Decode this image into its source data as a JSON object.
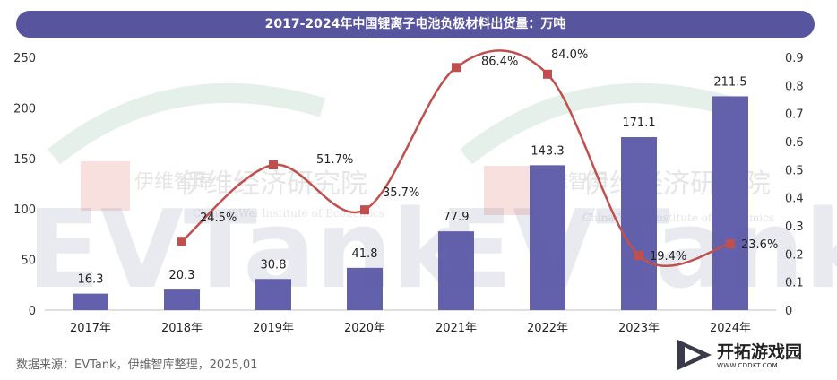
{
  "chart_data": {
    "type": "bar",
    "title": "2017-2024年中国锂离子电池负极材料出货量：万吨",
    "categories": [
      "2017年",
      "2018年",
      "2019年",
      "2020年",
      "2021年",
      "2022年",
      "2023年",
      "2024年"
    ],
    "series": [
      {
        "name": "",
        "type": "bar",
        "axis": "left",
        "values": [
          16.3,
          20.3,
          30.8,
          41.8,
          77.9,
          143.3,
          171.1,
          211.5
        ],
        "labels": [
          "16.3",
          "20.3",
          "30.8",
          "41.8",
          "77.9",
          "143.3",
          "171.1",
          "211.5"
        ]
      },
      {
        "name": "",
        "type": "line",
        "axis": "right",
        "values": [
          null,
          0.245,
          0.517,
          0.357,
          0.864,
          0.84,
          0.194,
          0.236
        ],
        "labels": [
          "",
          "24.5%",
          "51.7%",
          "35.7%",
          "86.4%",
          "84.0%",
          "19.4%",
          "23.6%"
        ]
      }
    ],
    "y_left": {
      "min": 0,
      "max": 250,
      "ticks": [
        "0",
        "50",
        "100",
        "150",
        "200",
        "250"
      ]
    },
    "y_right": {
      "min": 0,
      "max": 0.9,
      "ticks": [
        "0",
        "0.1",
        "0.2",
        "0.3",
        "0.4",
        "0.5",
        "0.6",
        "0.7",
        "0.8",
        "0.9"
      ]
    },
    "grid": false,
    "colors": {
      "bar": "#5b58a6",
      "line": "#c0504d",
      "title_bg": "#58559f"
    }
  },
  "source": "数据来源：EVTank，伊维智库整理，2025,01",
  "watermark": {
    "brand": "EVTank",
    "name_cn": "伊维经济研究院",
    "name_en": "China YiWei Institute of Economics",
    "short_cn": "伊维智库"
  },
  "corner_logo": {
    "text": "开拓游戏园",
    "url_text": "WWW.CDDKT.COM"
  }
}
